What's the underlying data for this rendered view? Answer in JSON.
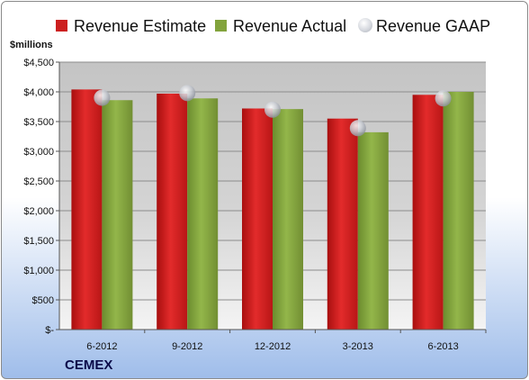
{
  "chart_data": {
    "type": "bar",
    "title": "",
    "xlabel": "",
    "ylabel": "$millions",
    "footer": "CEMEX",
    "categories": [
      "6-2012",
      "9-2012",
      "12-2012",
      "3-2013",
      "6-2013"
    ],
    "series": [
      {
        "name": "Revenue Estimate",
        "type": "bar",
        "color": "#cc1f1f",
        "values": [
          4040,
          3970,
          3720,
          3550,
          3950
        ]
      },
      {
        "name": "Revenue Actual",
        "type": "bar",
        "color": "#82a33c",
        "values": [
          3860,
          3890,
          3710,
          3320,
          4000
        ]
      },
      {
        "name": "Revenue GAAP",
        "type": "marker",
        "color": "#c8ccd4",
        "values": [
          3900,
          3980,
          3700,
          3390,
          3890
        ]
      }
    ],
    "ylim": [
      0,
      4500
    ],
    "yticks": [
      0,
      500,
      1000,
      1500,
      2000,
      2500,
      3000,
      3500,
      4000,
      4500
    ],
    "ytick_labels": [
      "$-",
      "$500",
      "$1,000",
      "$1,500",
      "$2,000",
      "$2,500",
      "$3,000",
      "$3,500",
      "$4,000",
      "$4,500"
    ],
    "grid": true,
    "legend_position": "top"
  }
}
